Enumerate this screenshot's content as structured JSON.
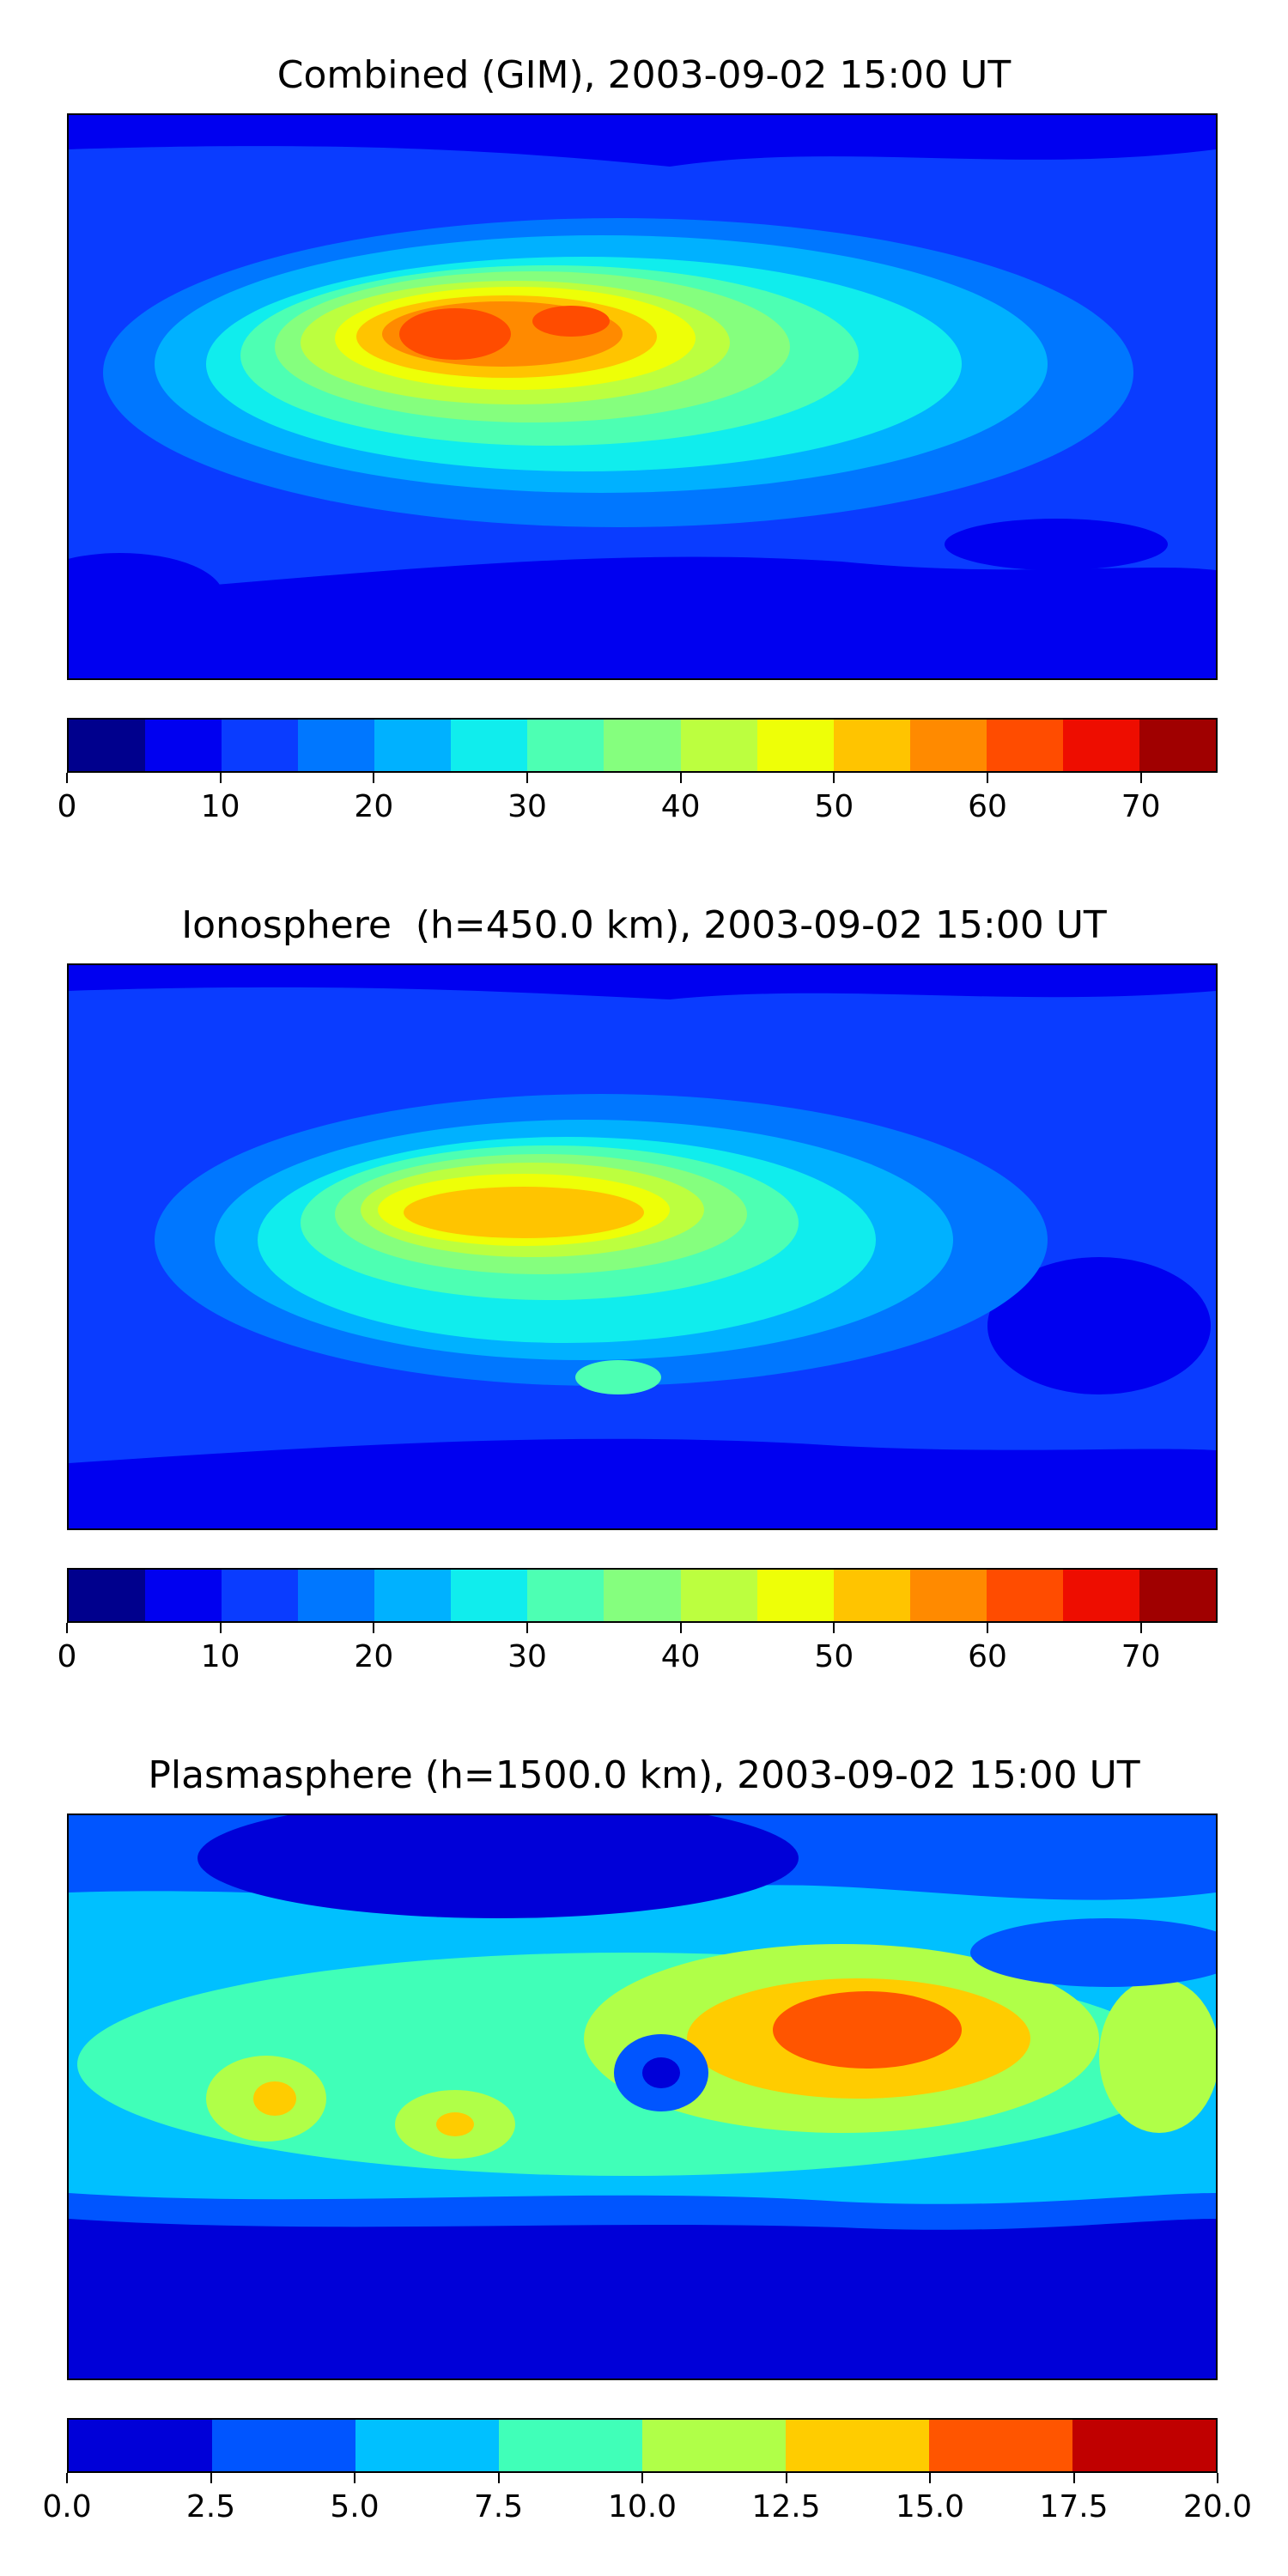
{
  "panels": [
    {
      "title": "Combined (GIM), 2003-09-02 15:00 UT",
      "colorbar": {
        "colors": [
          "#00008d",
          "#0000f0",
          "#0a3cff",
          "#0077ff",
          "#00b1ff",
          "#10eded",
          "#4dffb3",
          "#85ff7e",
          "#bcff3f",
          "#eeff07",
          "#ffc400",
          "#ff8a00",
          "#ff4c00",
          "#ee0d00",
          "#a00000"
        ],
        "tick_labels": [
          "0",
          "10",
          "20",
          "30",
          "40",
          "50",
          "60",
          "70"
        ],
        "tick_values": [
          0,
          10,
          20,
          30,
          40,
          50,
          60,
          70
        ],
        "vmin": 0,
        "vmax": 75
      }
    },
    {
      "title": "Ionosphere  (h=450.0 km), 2003-09-02 15:00 UT",
      "colorbar": {
        "colors": [
          "#00008d",
          "#0000f0",
          "#0a3cff",
          "#0077ff",
          "#00b1ff",
          "#10eded",
          "#4dffb3",
          "#85ff7e",
          "#bcff3f",
          "#eeff07",
          "#ffc400",
          "#ff8a00",
          "#ff4c00",
          "#ee0d00",
          "#a00000"
        ],
        "tick_labels": [
          "0",
          "10",
          "20",
          "30",
          "40",
          "50",
          "60",
          "70"
        ],
        "tick_values": [
          0,
          10,
          20,
          30,
          40,
          50,
          60,
          70
        ],
        "vmin": 0,
        "vmax": 75
      }
    },
    {
      "title": "Plasmasphere (h=1500.0 km), 2003-09-02 15:00 UT",
      "colorbar": {
        "colors": [
          "#0000d8",
          "#0055ff",
          "#00c0ff",
          "#40ffb8",
          "#b0ff48",
          "#ffcc00",
          "#ff5500",
          "#c00000"
        ],
        "tick_labels": [
          "0.0",
          "2.5",
          "5.0",
          "7.5",
          "10.0",
          "12.5",
          "15.0",
          "17.5",
          "20.0"
        ],
        "tick_values": [
          0,
          2.5,
          5,
          7.5,
          10,
          12.5,
          15,
          17.5,
          20
        ],
        "vmin": 0,
        "vmax": 20
      }
    }
  ]
}
